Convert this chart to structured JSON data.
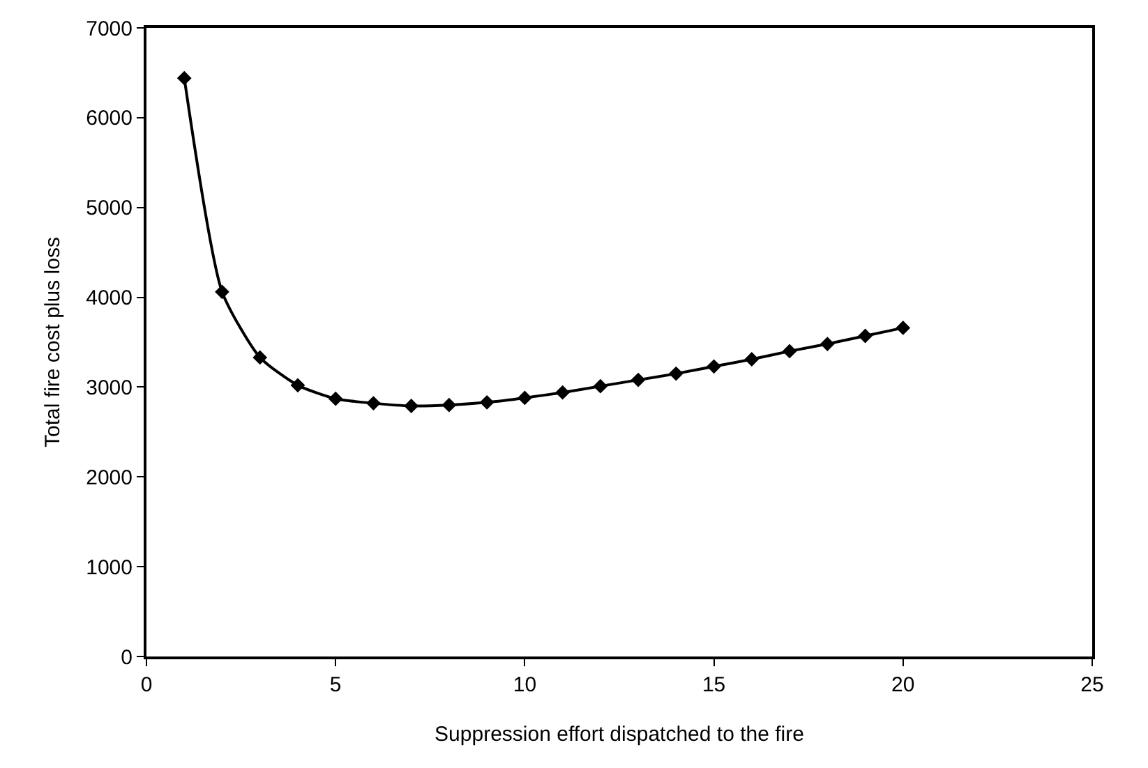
{
  "chart_data": {
    "type": "line",
    "xlabel": "Suppression effort dispatched to the fire",
    "ylabel": "Total fire cost plus loss",
    "x": [
      1,
      2,
      3,
      4,
      5,
      6,
      7,
      8,
      9,
      10,
      11,
      12,
      13,
      14,
      15,
      16,
      17,
      18,
      19,
      20
    ],
    "series": [
      {
        "color": "#000000",
        "values": [
          6440,
          4060,
          3330,
          3020,
          2870,
          2820,
          2790,
          2800,
          2830,
          2880,
          2940,
          3010,
          3080,
          3150,
          3230,
          3310,
          3400,
          3480,
          3570,
          3660
        ]
      }
    ],
    "xlim": [
      0,
      25
    ],
    "xticks": [
      0,
      5,
      10,
      15,
      20,
      25
    ],
    "ylim": [
      0,
      7000
    ],
    "yticks": [
      0,
      1000,
      2000,
      3000,
      4000,
      5000,
      6000,
      7000
    ],
    "marker": "diamond",
    "line_style": "solid"
  }
}
